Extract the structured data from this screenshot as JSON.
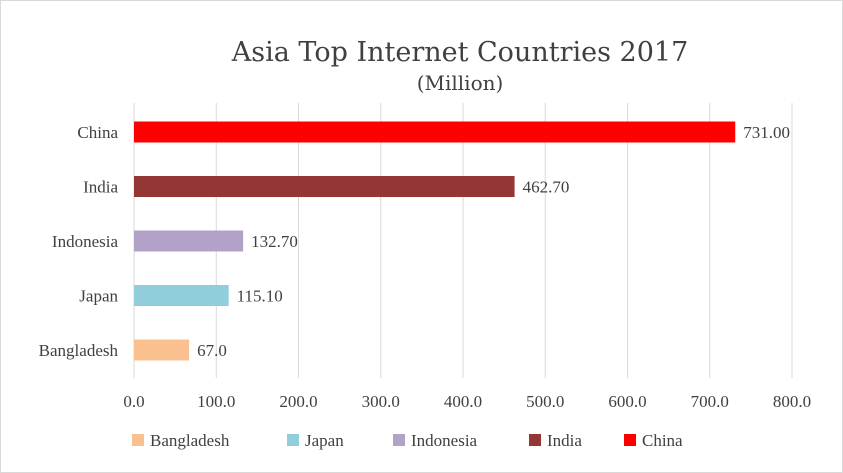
{
  "chart_data": {
    "type": "bar",
    "orientation": "horizontal",
    "title": "Asia Top Internet Countries 2017",
    "subtitle": "(Million)",
    "categories": [
      "China",
      "India",
      "Indonesia",
      "Japan",
      "Bangladesh"
    ],
    "values": [
      731.0,
      462.7,
      132.7,
      115.1,
      67.0
    ],
    "value_labels": [
      "731.00",
      "462.70",
      "132.70",
      "115.10",
      "67.0"
    ],
    "colors": [
      "#ff0000",
      "#943634",
      "#b3a2c7",
      "#92cddc",
      "#fac090"
    ],
    "xlim": [
      0,
      800
    ],
    "x_ticks": [
      0,
      100,
      200,
      300,
      400,
      500,
      600,
      700,
      800
    ],
    "x_tick_labels": [
      "0.0",
      "100.0",
      "200.0",
      "300.0",
      "400.0",
      "500.0",
      "600.0",
      "700.0",
      "800.0"
    ],
    "grid": "vertical",
    "legend": {
      "position": "bottom",
      "entries": [
        {
          "label": "Bangladesh",
          "color": "#fac090"
        },
        {
          "label": "Japan",
          "color": "#92cddc"
        },
        {
          "label": "Indonesia",
          "color": "#b3a2c7"
        },
        {
          "label": "India",
          "color": "#943634"
        },
        {
          "label": "China",
          "color": "#ff0000"
        }
      ]
    }
  }
}
